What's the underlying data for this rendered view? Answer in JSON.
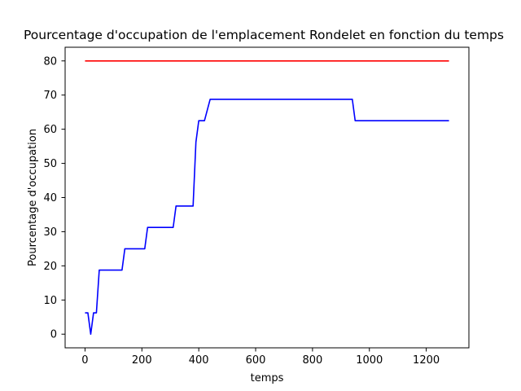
{
  "chart_data": {
    "type": "line",
    "title": "Pourcentage d'occupation de l'emplacement Rondelet en fonction du temps",
    "xlabel": "temps",
    "ylabel": "Pourcentage d'occupation",
    "xlim": [
      -70,
      1350
    ],
    "ylim": [
      -4,
      84
    ],
    "xticks": [
      0,
      200,
      400,
      600,
      800,
      1000,
      1200
    ],
    "yticks": [
      0,
      10,
      20,
      30,
      40,
      50,
      60,
      70,
      80
    ],
    "grid": false,
    "legend": "none",
    "series": [
      {
        "color": "#ff0000",
        "x": [
          0,
          1280
        ],
        "y": [
          80,
          80
        ]
      },
      {
        "color": "#0000ff",
        "x": [
          0,
          10,
          20,
          30,
          40,
          50,
          60,
          130,
          140,
          210,
          220,
          310,
          320,
          380,
          390,
          400,
          420,
          440,
          450,
          940,
          950,
          1280
        ],
        "y": [
          6.25,
          6.25,
          0,
          6.25,
          6.25,
          18.75,
          18.75,
          18.75,
          25,
          25,
          31.25,
          31.25,
          37.5,
          37.5,
          56.25,
          62.5,
          62.5,
          68.75,
          68.75,
          68.75,
          62.5,
          62.5
        ]
      }
    ]
  }
}
